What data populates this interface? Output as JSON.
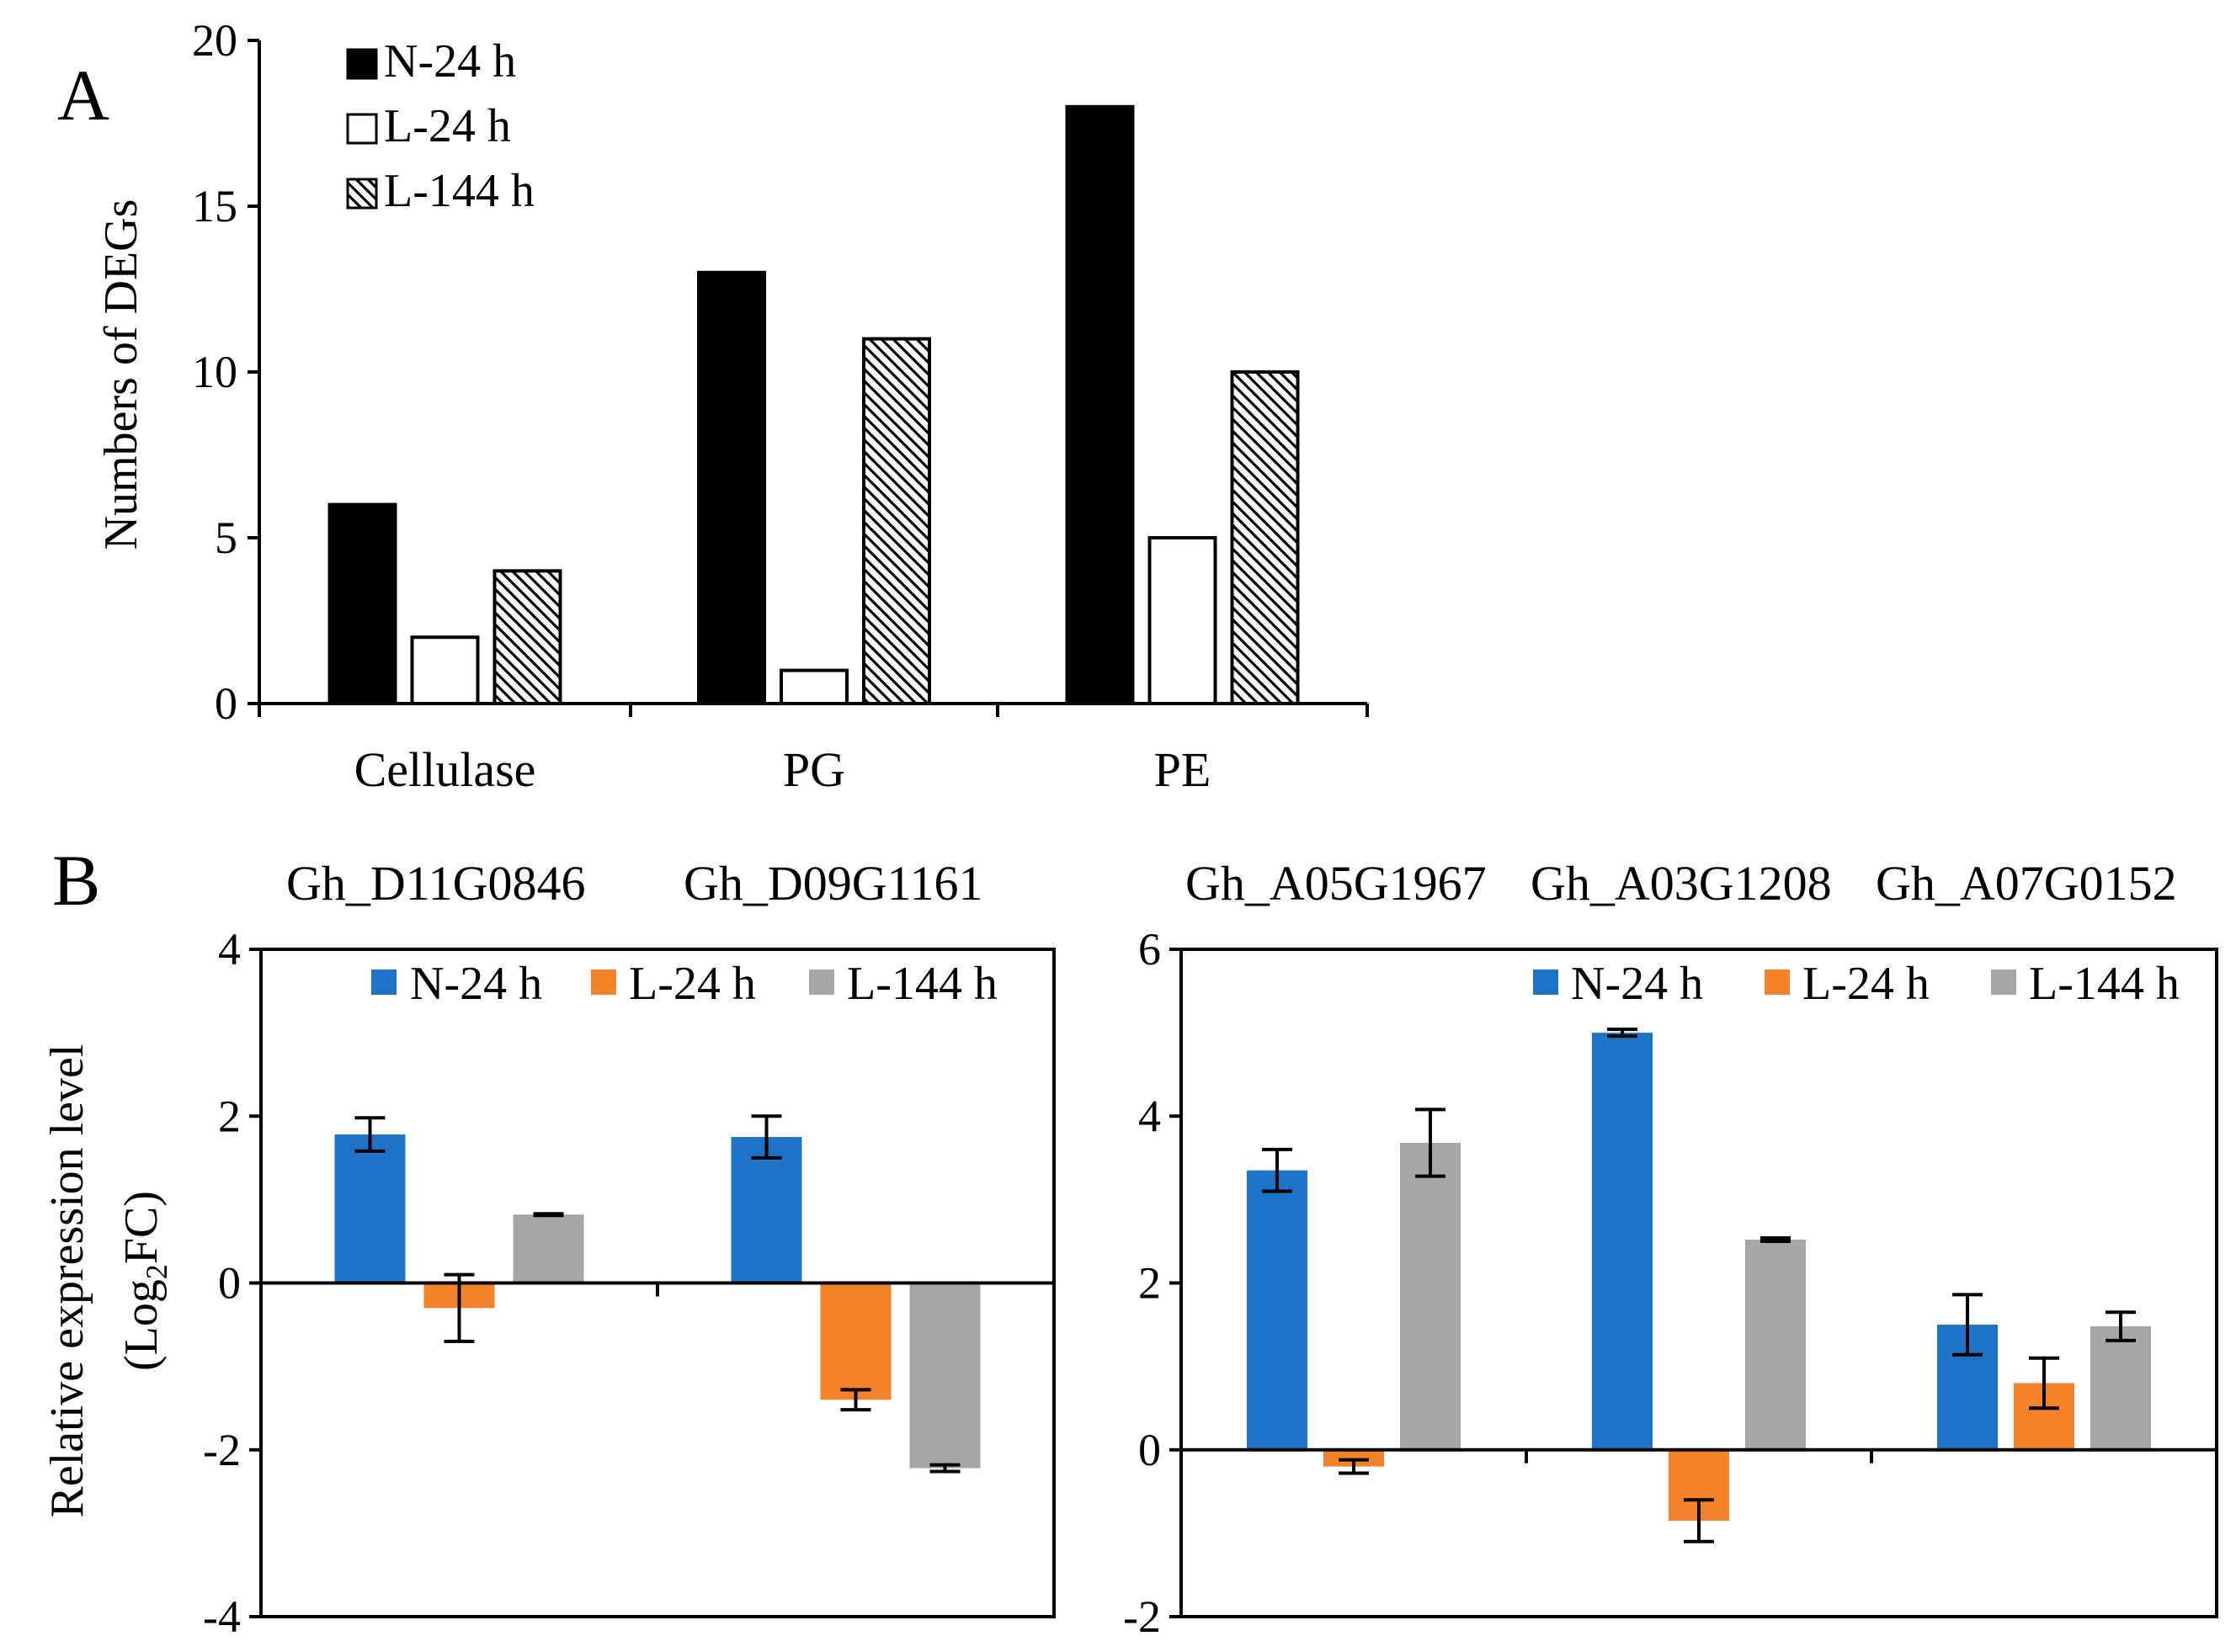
{
  "colors": {
    "n24_A": "#000000",
    "l24_A": "#ffffff",
    "l144_A": "hatched",
    "n24_B": "#1f73c7",
    "l24_B": "#f5822a",
    "l144_B": "#a6a6a6"
  },
  "chart_data": [
    {
      "panel": "A",
      "type": "bar",
      "ylabel": "Numbers of DEGs",
      "ylim": [
        0,
        20
      ],
      "yticks": [
        "0",
        "5",
        "10",
        "15",
        "20"
      ],
      "categories": [
        "Cellulase",
        "PG",
        "PE"
      ],
      "legend": [
        "N-24 h",
        "L-24 h",
        "L-144 h"
      ],
      "legend_position": "top-left",
      "series": [
        {
          "name": "N-24 h",
          "values": [
            6,
            13,
            18
          ]
        },
        {
          "name": "L-24 h",
          "values": [
            2,
            1,
            5
          ]
        },
        {
          "name": "L-144 h",
          "values": [
            4,
            11,
            10
          ]
        }
      ]
    },
    {
      "panel": "B",
      "type": "bar",
      "ylabel_line1": "Relative expression level",
      "ylabel_line2_main": "(Log",
      "ylabel_line2_sub": "2",
      "ylabel_line2_end": "FC)",
      "ylim": [
        -4,
        4
      ],
      "yticks": [
        "-4",
        "-2",
        "0",
        "2",
        "4"
      ],
      "categories": [
        "Gh_D11G0846",
        "Gh_D09G1161"
      ],
      "legend": [
        "N-24 h",
        "L-24 h",
        "L-144 h"
      ],
      "legend_position": "top-right",
      "series": [
        {
          "name": "N-24 h",
          "values": [
            1.78,
            1.75
          ],
          "errors": [
            0.2,
            0.25
          ]
        },
        {
          "name": "L-24 h",
          "values": [
            -0.3,
            -1.4
          ],
          "errors": [
            0.4,
            0.12
          ]
        },
        {
          "name": "L-144 h",
          "values": [
            0.82,
            -2.22
          ],
          "errors": [
            0.01,
            0.04
          ]
        }
      ]
    },
    {
      "panel": "B",
      "type": "bar",
      "ylim": [
        -2,
        6
      ],
      "yticks": [
        "-2",
        "0",
        "2",
        "4",
        "6"
      ],
      "categories": [
        "Gh_A05G1967",
        "Gh_A03G1208",
        "Gh_A07G0152"
      ],
      "legend": [
        "N-24 h",
        "L-24 h",
        "L-144 h"
      ],
      "legend_position": "top-right",
      "series": [
        {
          "name": "N-24 h",
          "values": [
            3.35,
            5.0,
            1.5
          ],
          "errors": [
            0.25,
            0.04,
            0.36
          ]
        },
        {
          "name": "L-24 h",
          "values": [
            -0.2,
            -0.85,
            0.8
          ],
          "errors": [
            0.08,
            0.25,
            0.3
          ]
        },
        {
          "name": "L-144 h",
          "values": [
            3.68,
            2.52,
            1.48
          ],
          "errors": [
            0.4,
            0.02,
            0.17
          ]
        }
      ]
    }
  ],
  "panel_labels": [
    "A",
    "B"
  ]
}
